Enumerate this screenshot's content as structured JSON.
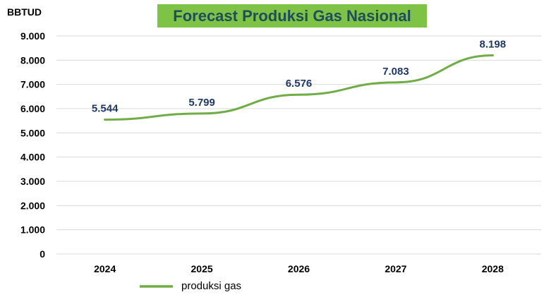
{
  "chart_data": {
    "type": "line",
    "title": "Forecast Produksi Gas Nasional",
    "ylabel": "BBTUD",
    "xlabel": "",
    "categories": [
      "2024",
      "2025",
      "2026",
      "2027",
      "2028"
    ],
    "series": [
      {
        "name": "produksi gas",
        "values": [
          5544,
          5799,
          6576,
          7083,
          8198
        ]
      }
    ],
    "data_labels": [
      "5.544",
      "5.799",
      "6.576",
      "7.083",
      "8.198"
    ],
    "yticks": [
      0,
      1000,
      2000,
      3000,
      4000,
      5000,
      6000,
      7000,
      8000,
      9000
    ],
    "ytick_labels": [
      "0",
      "1.000",
      "2.000",
      "3.000",
      "4.000",
      "5.000",
      "6.000",
      "7.000",
      "8.000",
      "9.000"
    ],
    "ylim": [
      0,
      9000
    ],
    "grid": true,
    "legend_position": "bottom-left"
  },
  "colors": {
    "line": "#70ad47",
    "title_background": "#7ec246",
    "title_text": "#1f4e5a",
    "grid": "#d9d9d9",
    "label_text": "#1f3864"
  }
}
